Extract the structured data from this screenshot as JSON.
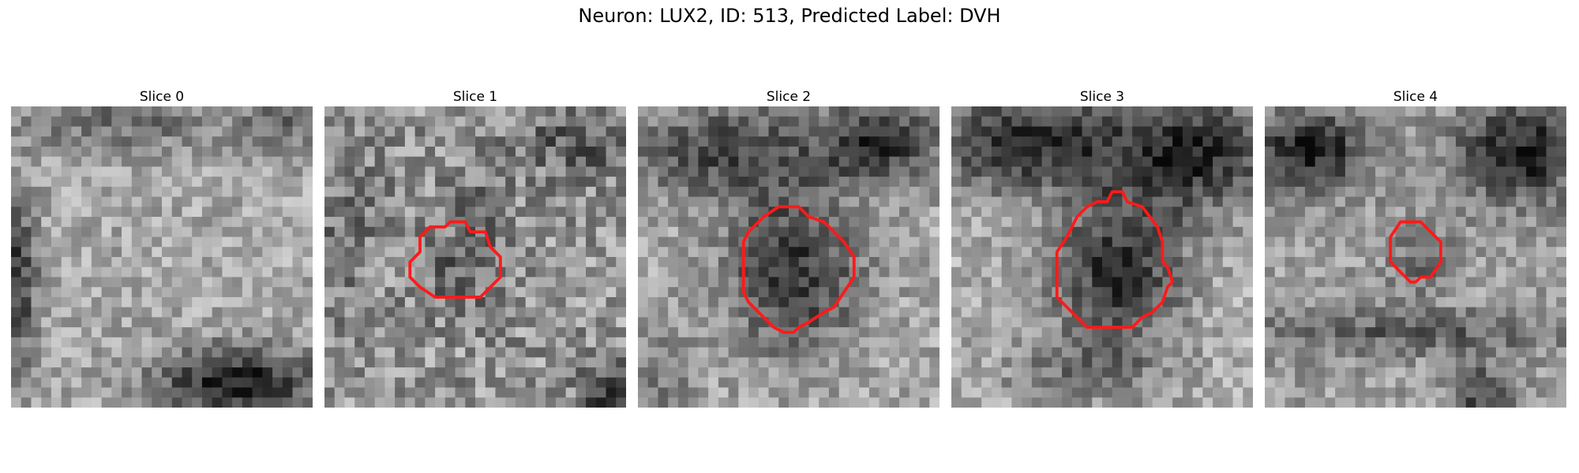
{
  "figure": {
    "title": "Neuron: LUX2, ID: 513, Predicted Label: DVH"
  },
  "panels": [
    {
      "title": "Slice 0",
      "outline": false
    },
    {
      "title": "Slice 1",
      "outline": true
    },
    {
      "title": "Slice 2",
      "outline": true
    },
    {
      "title": "Slice 3",
      "outline": true
    },
    {
      "title": "Slice 4",
      "outline": true
    }
  ],
  "colors": {
    "background": "#ffffff",
    "outline": "#ff1a1a",
    "colormap": "grayscale"
  }
}
